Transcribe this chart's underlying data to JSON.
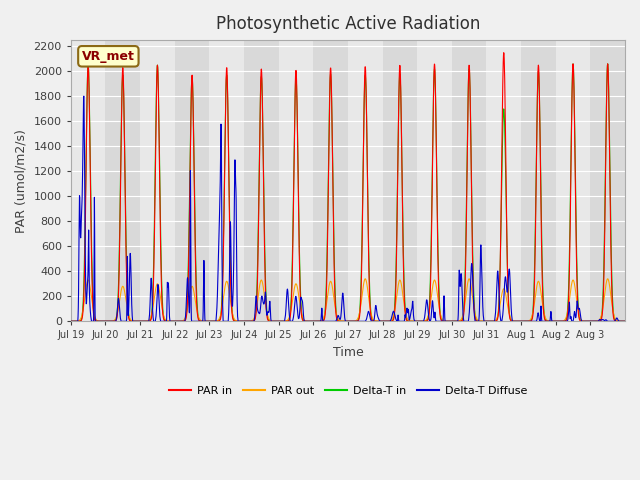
{
  "title": "Photosynthetic Active Radiation",
  "ylabel": "PAR (umol/m2/s)",
  "xlabel": "Time",
  "ylim": [
    0,
    2250
  ],
  "yticks": [
    0,
    200,
    400,
    600,
    800,
    1000,
    1200,
    1400,
    1600,
    1800,
    2000,
    2200
  ],
  "legend_labels": [
    "PAR in",
    "PAR out",
    "Delta-T in",
    "Delta-T Diffuse"
  ],
  "legend_colors": [
    "#ff0000",
    "#ffa500",
    "#00cc00",
    "#0000cc"
  ],
  "watermark": "VR_met",
  "background_color": "#f0f0f0",
  "plot_bg": "#e8e8e8",
  "n_days": 16,
  "xtick_labels": [
    "Jul 19",
    "Jul 20",
    "Jul 21",
    "Jul 22",
    "Jul 23",
    "Jul 24",
    "Jul 25",
    "Jul 26",
    "Jul 27",
    "Jul 28",
    "Jul 29",
    "Jul 30",
    "Jul 31",
    "Aug 1",
    "Aug 2",
    "Aug 3"
  ],
  "par_in_peaks": [
    2050,
    2030,
    2050,
    1970,
    2030,
    2020,
    2010,
    2030,
    2040,
    2050,
    2060,
    2050,
    2150,
    2050,
    2060,
    2060
  ],
  "par_out_peaks": [
    330,
    280,
    300,
    280,
    320,
    330,
    300,
    320,
    340,
    330,
    330,
    340,
    260,
    320,
    330,
    340
  ],
  "delta_t_in_peaks": [
    2050,
    1970,
    2050,
    1950,
    1970,
    1960,
    1950,
    1980,
    1970,
    1980,
    2020,
    2020,
    1700,
    2000,
    2060,
    2060
  ],
  "delta_t_diff_peaks": [
    1150,
    580,
    540,
    870,
    930,
    200,
    300,
    115,
    120,
    110,
    175,
    480,
    790,
    145,
    110,
    30
  ]
}
